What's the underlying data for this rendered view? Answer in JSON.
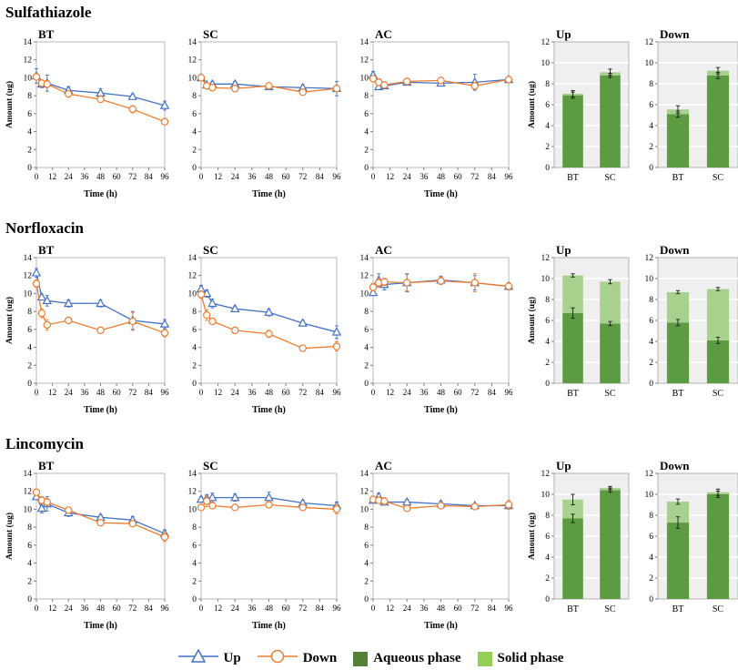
{
  "rows": [
    {
      "title": "Sulfathiazole"
    },
    {
      "title": "Norfloxacin"
    },
    {
      "title": "Lincomycin"
    }
  ],
  "legend": {
    "items": [
      {
        "label": "Up",
        "kind": "line-marker",
        "marker": "triangle",
        "color": "#4472C4"
      },
      {
        "label": "Down",
        "kind": "line-marker",
        "marker": "circle",
        "color": "#ED7D31"
      },
      {
        "label": "Aqueous phase",
        "kind": "swatch",
        "color": "#538135"
      },
      {
        "label": "Solid phase",
        "kind": "swatch",
        "color": "#92D050"
      }
    ]
  },
  "chart_data": [
    {
      "id": "sulfathiazole-bt",
      "row": 0,
      "type": "line",
      "title": "BT",
      "ylabel": "Amount (ug)",
      "xlabel": "Time (h)",
      "x": [
        0,
        4,
        8,
        24,
        48,
        72,
        96
      ],
      "xticks": [
        0,
        12,
        24,
        36,
        48,
        60,
        72,
        84,
        96
      ],
      "xlim": [
        0,
        96
      ],
      "ylim": [
        0,
        14
      ],
      "yticks": [
        0,
        2,
        4,
        6,
        8,
        10,
        12,
        14
      ],
      "series": [
        {
          "name": "Up",
          "color": "#4472C4",
          "marker": "triangle",
          "values": [
            10.2,
            9.3,
            9.4,
            8.6,
            8.3,
            7.9,
            6.9
          ],
          "errors": [
            0.8,
            0.4,
            0.9,
            0.4,
            0.5,
            0.3,
            0.5
          ]
        },
        {
          "name": "Down",
          "color": "#ED7D31",
          "marker": "circle",
          "values": [
            10.1,
            9.4,
            9.3,
            8.2,
            7.6,
            6.5,
            5.1
          ],
          "errors": [
            0.3,
            0.3,
            0.4,
            0.3,
            0.2,
            0.4,
            0.3
          ]
        }
      ]
    },
    {
      "id": "sulfathiazole-sc",
      "row": 0,
      "type": "line",
      "title": "SC",
      "ylabel": "",
      "xlabel": "Time (h)",
      "x": [
        0,
        4,
        8,
        24,
        48,
        72,
        96
      ],
      "xticks": [
        0,
        12,
        24,
        36,
        48,
        60,
        72,
        84,
        96
      ],
      "xlim": [
        0,
        96
      ],
      "ylim": [
        0,
        14
      ],
      "yticks": [
        0,
        2,
        4,
        6,
        8,
        10,
        12,
        14
      ],
      "series": [
        {
          "name": "Up",
          "color": "#4472C4",
          "marker": "triangle",
          "values": [
            10.0,
            9.2,
            9.3,
            9.3,
            9.0,
            8.9,
            8.8
          ],
          "errors": [
            0.3,
            0.2,
            0.3,
            0.3,
            0.2,
            0.3,
            0.8
          ]
        },
        {
          "name": "Down",
          "color": "#ED7D31",
          "marker": "circle",
          "values": [
            10.0,
            9.1,
            8.9,
            8.8,
            9.1,
            8.4,
            8.8
          ],
          "errors": [
            0.3,
            0.2,
            0.2,
            0.2,
            0.2,
            0.3,
            0.3
          ]
        }
      ]
    },
    {
      "id": "sulfathiazole-ac",
      "row": 0,
      "type": "line",
      "title": "AC",
      "ylabel": "",
      "xlabel": "Time (h)",
      "x": [
        0,
        4,
        8,
        24,
        48,
        72,
        96
      ],
      "xticks": [
        0,
        12,
        24,
        36,
        48,
        60,
        72,
        84,
        96
      ],
      "xlim": [
        0,
        96
      ],
      "ylim": [
        0,
        14
      ],
      "yticks": [
        0,
        2,
        4,
        6,
        8,
        10,
        12,
        14
      ],
      "series": [
        {
          "name": "Up",
          "color": "#4472C4",
          "marker": "triangle",
          "values": [
            10.3,
            9.0,
            9.1,
            9.5,
            9.4,
            9.5,
            9.8
          ],
          "errors": [
            0.4,
            0.3,
            0.3,
            0.3,
            0.3,
            0.9,
            0.3
          ]
        },
        {
          "name": "Down",
          "color": "#ED7D31",
          "marker": "circle",
          "values": [
            9.9,
            9.5,
            9.2,
            9.6,
            9.7,
            9.1,
            9.8
          ],
          "errors": [
            0.3,
            0.4,
            0.3,
            0.3,
            0.3,
            0.4,
            0.3
          ]
        }
      ]
    },
    {
      "id": "sulfathiazole-up-bar",
      "row": 0,
      "type": "stacked-bar",
      "title": "Up",
      "ylabel": "Amount (ug)",
      "categories": [
        "BT",
        "SC"
      ],
      "ylim": [
        0,
        12
      ],
      "yticks": [
        0,
        2,
        4,
        6,
        8,
        10,
        12
      ],
      "series": [
        {
          "name": "Aqueous phase",
          "color": "#5B9B41",
          "values": [
            6.9,
            8.8
          ],
          "errors": [
            0.3,
            0.2
          ]
        },
        {
          "name": "Solid phase",
          "color": "#A9D18E",
          "values": [
            0.15,
            0.3
          ],
          "errors": [
            0.3,
            0.3
          ]
        }
      ]
    },
    {
      "id": "sulfathiazole-down-bar",
      "row": 0,
      "type": "stacked-bar",
      "title": "Down",
      "ylabel": "",
      "categories": [
        "BT",
        "SC"
      ],
      "ylim": [
        0,
        12
      ],
      "yticks": [
        0,
        2,
        4,
        6,
        8,
        10,
        12
      ],
      "series": [
        {
          "name": "Aqueous phase",
          "color": "#5B9B41",
          "values": [
            5.1,
            8.8
          ],
          "errors": [
            0.3,
            0.3
          ]
        },
        {
          "name": "Solid phase",
          "color": "#A9D18E",
          "values": [
            0.45,
            0.45
          ],
          "errors": [
            0.35,
            0.3
          ]
        }
      ]
    },
    {
      "id": "norfloxacin-bt",
      "row": 1,
      "type": "line",
      "title": "BT",
      "ylabel": "Amount (ug)",
      "xlabel": "Time (h)",
      "x": [
        0,
        4,
        8,
        24,
        48,
        72,
        96
      ],
      "xticks": [
        0,
        12,
        24,
        36,
        48,
        60,
        72,
        84,
        96
      ],
      "xlim": [
        0,
        96
      ],
      "ylim": [
        0,
        14
      ],
      "yticks": [
        0,
        2,
        4,
        6,
        8,
        10,
        12,
        14
      ],
      "series": [
        {
          "name": "Up",
          "color": "#4472C4",
          "marker": "triangle",
          "values": [
            12.3,
            9.6,
            9.2,
            8.9,
            8.9,
            7.0,
            6.6
          ],
          "errors": [
            0.5,
            0.3,
            0.6,
            0.4,
            0.4,
            1.0,
            0.5
          ]
        },
        {
          "name": "Down",
          "color": "#ED7D31",
          "marker": "circle",
          "values": [
            11.1,
            7.8,
            6.5,
            7.0,
            5.9,
            6.9,
            5.6
          ],
          "errors": [
            0.4,
            0.5,
            0.6,
            0.3,
            0.3,
            1.0,
            0.4
          ]
        }
      ]
    },
    {
      "id": "norfloxacin-sc",
      "row": 1,
      "type": "line",
      "title": "SC",
      "ylabel": "",
      "xlabel": "Time (h)",
      "x": [
        0,
        4,
        8,
        24,
        48,
        72,
        96
      ],
      "xticks": [
        0,
        12,
        24,
        36,
        48,
        60,
        72,
        84,
        96
      ],
      "xlim": [
        0,
        96
      ],
      "ylim": [
        0,
        14
      ],
      "yticks": [
        0,
        2,
        4,
        6,
        8,
        10,
        12,
        14
      ],
      "series": [
        {
          "name": "Up",
          "color": "#4472C4",
          "marker": "triangle",
          "values": [
            10.5,
            10.0,
            8.9,
            8.3,
            7.9,
            6.7,
            5.7
          ],
          "errors": [
            0.4,
            0.4,
            0.5,
            0.3,
            0.4,
            0.3,
            0.7
          ]
        },
        {
          "name": "Down",
          "color": "#ED7D31",
          "marker": "circle",
          "values": [
            9.9,
            7.6,
            6.9,
            5.9,
            5.5,
            3.9,
            4.1
          ],
          "errors": [
            0.4,
            0.6,
            0.3,
            0.3,
            0.4,
            0.3,
            0.5
          ]
        }
      ]
    },
    {
      "id": "norfloxacin-ac",
      "row": 1,
      "type": "line",
      "title": "AC",
      "ylabel": "",
      "xlabel": "Time (h)",
      "x": [
        0,
        4,
        8,
        24,
        48,
        72,
        96
      ],
      "xticks": [
        0,
        12,
        24,
        36,
        48,
        60,
        72,
        84,
        96
      ],
      "xlim": [
        0,
        96
      ],
      "ylim": [
        0,
        14
      ],
      "yticks": [
        0,
        2,
        4,
        6,
        8,
        10,
        12,
        14
      ],
      "series": [
        {
          "name": "Up",
          "color": "#4472C4",
          "marker": "triangle",
          "values": [
            10.1,
            11.5,
            11.0,
            11.2,
            11.5,
            11.2,
            10.8
          ],
          "errors": [
            0.3,
            0.7,
            0.6,
            1.0,
            0.4,
            0.8,
            0.4
          ]
        },
        {
          "name": "Down",
          "color": "#ED7D31",
          "marker": "circle",
          "values": [
            10.7,
            11.2,
            11.3,
            11.2,
            11.4,
            11.2,
            10.8
          ],
          "errors": [
            0.4,
            0.5,
            0.4,
            0.9,
            0.4,
            1.0,
            0.4
          ]
        }
      ]
    },
    {
      "id": "norfloxacin-up-bar",
      "row": 1,
      "type": "stacked-bar",
      "title": "Up",
      "ylabel": "Amount (ug)",
      "categories": [
        "BT",
        "SC"
      ],
      "ylim": [
        0,
        12
      ],
      "yticks": [
        0,
        2,
        4,
        6,
        8,
        10,
        12
      ],
      "series": [
        {
          "name": "Aqueous phase",
          "color": "#5B9B41",
          "values": [
            6.7,
            5.7
          ],
          "errors": [
            0.5,
            0.2
          ]
        },
        {
          "name": "Solid phase",
          "color": "#A9D18E",
          "values": [
            3.6,
            4.0
          ],
          "errors": [
            0.15,
            0.2
          ]
        }
      ]
    },
    {
      "id": "norfloxacin-down-bar",
      "row": 1,
      "type": "stacked-bar",
      "title": "Down",
      "ylabel": "",
      "categories": [
        "BT",
        "SC"
      ],
      "ylim": [
        0,
        12
      ],
      "yticks": [
        0,
        2,
        4,
        6,
        8,
        10,
        12
      ],
      "series": [
        {
          "name": "Aqueous phase",
          "color": "#5B9B41",
          "values": [
            5.8,
            4.1
          ],
          "errors": [
            0.3,
            0.3
          ]
        },
        {
          "name": "Solid phase",
          "color": "#A9D18E",
          "values": [
            2.9,
            4.9
          ],
          "errors": [
            0.15,
            0.15
          ]
        }
      ]
    },
    {
      "id": "lincomycin-bt",
      "row": 2,
      "type": "line",
      "title": "BT",
      "ylabel": "Amount (ug)",
      "xlabel": "Time (h)",
      "x": [
        0,
        4,
        8,
        24,
        48,
        72,
        96
      ],
      "xticks": [
        0,
        12,
        24,
        36,
        48,
        60,
        72,
        84,
        96
      ],
      "xlim": [
        0,
        96
      ],
      "ylim": [
        0,
        14
      ],
      "yticks": [
        0,
        2,
        4,
        6,
        8,
        10,
        12,
        14
      ],
      "series": [
        {
          "name": "Up",
          "color": "#4472C4",
          "marker": "triangle",
          "values": [
            11.4,
            10.1,
            10.6,
            9.6,
            9.1,
            8.8,
            7.3
          ],
          "errors": [
            0.3,
            0.5,
            0.8,
            0.4,
            0.3,
            0.4,
            0.4
          ]
        },
        {
          "name": "Down",
          "color": "#ED7D31",
          "marker": "circle",
          "values": [
            11.9,
            11.0,
            10.8,
            9.9,
            8.5,
            8.4,
            6.9
          ],
          "errors": [
            0.3,
            0.4,
            0.4,
            0.3,
            0.3,
            0.3,
            0.5
          ]
        }
      ]
    },
    {
      "id": "lincomycin-sc",
      "row": 2,
      "type": "line",
      "title": "SC",
      "ylabel": "",
      "xlabel": "Time (h)",
      "x": [
        0,
        4,
        8,
        24,
        48,
        72,
        96
      ],
      "xticks": [
        0,
        12,
        24,
        36,
        48,
        60,
        72,
        84,
        96
      ],
      "xlim": [
        0,
        96
      ],
      "ylim": [
        0,
        14
      ],
      "yticks": [
        0,
        2,
        4,
        6,
        8,
        10,
        12,
        14
      ],
      "series": [
        {
          "name": "Up",
          "color": "#4472C4",
          "marker": "triangle",
          "values": [
            11.1,
            11.2,
            11.3,
            11.3,
            11.3,
            10.7,
            10.4
          ],
          "errors": [
            0.3,
            0.4,
            0.5,
            0.4,
            0.6,
            0.3,
            0.4
          ]
        },
        {
          "name": "Down",
          "color": "#ED7D31",
          "marker": "circle",
          "values": [
            10.2,
            10.9,
            10.4,
            10.2,
            10.5,
            10.2,
            10.0
          ],
          "errors": [
            0.3,
            0.6,
            0.3,
            0.3,
            0.3,
            0.3,
            0.5
          ]
        }
      ]
    },
    {
      "id": "lincomycin-ac",
      "row": 2,
      "type": "line",
      "title": "AC",
      "ylabel": "",
      "xlabel": "Time (h)",
      "x": [
        0,
        4,
        8,
        24,
        48,
        72,
        96
      ],
      "xticks": [
        0,
        12,
        24,
        36,
        48,
        60,
        72,
        84,
        96
      ],
      "xlim": [
        0,
        96
      ],
      "ylim": [
        0,
        14
      ],
      "yticks": [
        0,
        2,
        4,
        6,
        8,
        10,
        12,
        14
      ],
      "series": [
        {
          "name": "Up",
          "color": "#4472C4",
          "marker": "triangle",
          "values": [
            11.0,
            11.4,
            10.8,
            10.8,
            10.6,
            10.4,
            10.4
          ],
          "errors": [
            0.3,
            0.4,
            0.3,
            0.3,
            0.3,
            0.2,
            0.3
          ]
        },
        {
          "name": "Down",
          "color": "#ED7D31",
          "marker": "circle",
          "values": [
            11.1,
            11.0,
            10.9,
            10.1,
            10.4,
            10.3,
            10.5
          ],
          "errors": [
            0.3,
            0.3,
            0.4,
            0.3,
            0.3,
            0.2,
            0.5
          ]
        }
      ]
    },
    {
      "id": "lincomycin-up-bar",
      "row": 2,
      "type": "stacked-bar",
      "title": "Up",
      "ylabel": "Amount (ug)",
      "categories": [
        "BT",
        "SC"
      ],
      "ylim": [
        0,
        12
      ],
      "yticks": [
        0,
        2,
        4,
        6,
        8,
        10,
        12
      ],
      "series": [
        {
          "name": "Aqueous phase",
          "color": "#5B9B41",
          "values": [
            7.7,
            10.4
          ],
          "errors": [
            0.4,
            0.2
          ]
        },
        {
          "name": "Solid phase",
          "color": "#A9D18E",
          "values": [
            1.8,
            0.2
          ],
          "errors": [
            0.5,
            0.15
          ]
        }
      ]
    },
    {
      "id": "lincomycin-down-bar",
      "row": 2,
      "type": "stacked-bar",
      "title": "Down",
      "ylabel": "",
      "categories": [
        "BT",
        "SC"
      ],
      "ylim": [
        0,
        12
      ],
      "yticks": [
        0,
        2,
        4,
        6,
        8,
        10,
        12
      ],
      "series": [
        {
          "name": "Aqueous phase",
          "color": "#5B9B41",
          "values": [
            7.3,
            10.0
          ],
          "errors": [
            0.55,
            0.3
          ]
        },
        {
          "name": "Solid phase",
          "color": "#A9D18E",
          "values": [
            2.0,
            0.2
          ],
          "errors": [
            0.25,
            0.3
          ]
        }
      ]
    }
  ]
}
